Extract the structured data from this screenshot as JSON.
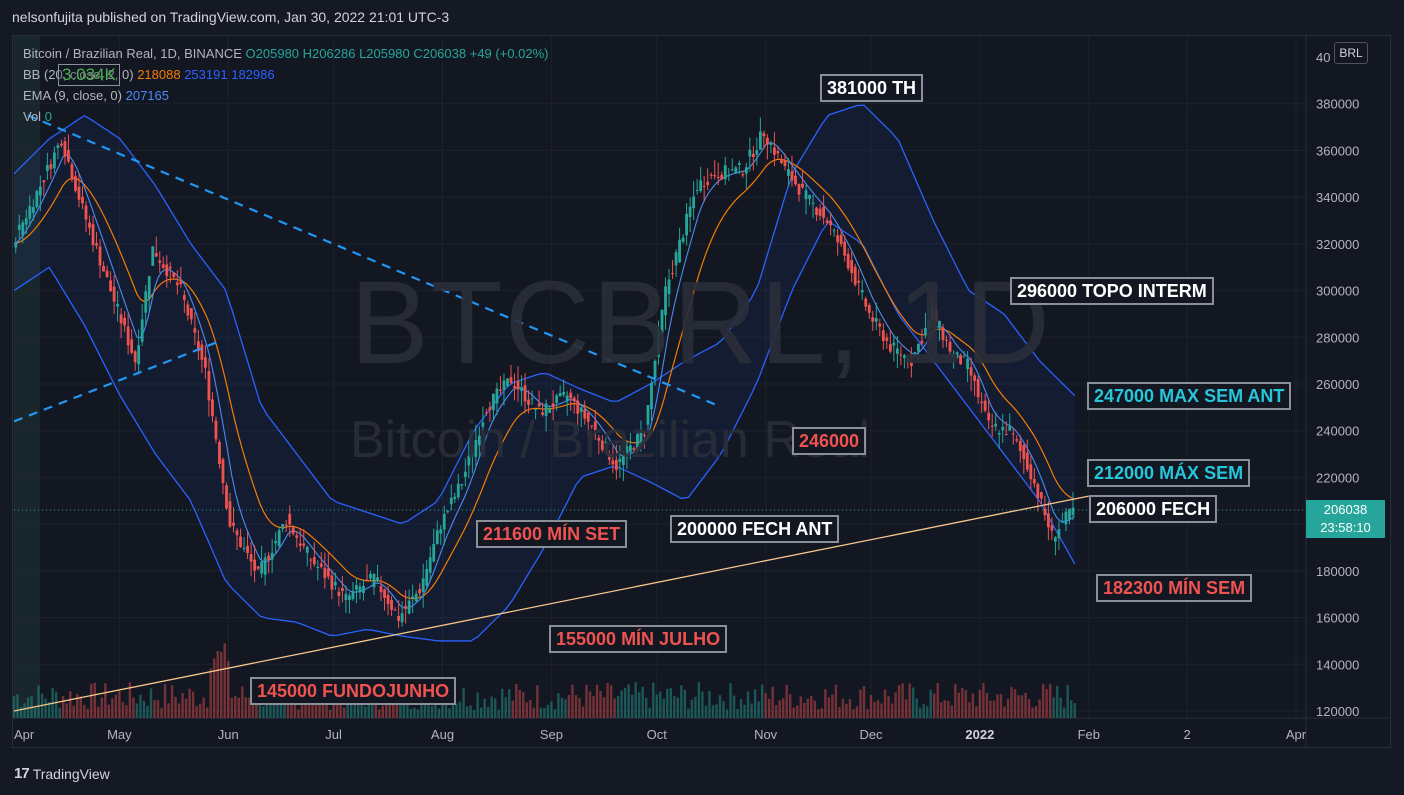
{
  "header": {
    "text": "nelsonfujita published on TradingView.com, Jan 30, 2022 21:01 UTC-3"
  },
  "legend": {
    "symbol": "Bitcoin / Brazilian Real, 1D, BINANCE",
    "open": "O205980",
    "high": "H206286",
    "low": "L205980",
    "close": "C206038",
    "change": "+49 (+0.02%)",
    "bb_label": "BB (20, close, 2, 0)",
    "bb_mid": "218088",
    "bb_up": "253191",
    "bb_low": "182986",
    "ema_label": "EMA (9, close, 0)",
    "ema_val": "207165",
    "vol_label": "Vol",
    "vol_val": "0",
    "overlay": "3.034K"
  },
  "watermark": {
    "symbol": "BTCBRL, 1D",
    "name": "Bitcoin / Brazilian Real"
  },
  "currency": "BRL",
  "price_box": {
    "price": "206038",
    "countdown": "23:58:10"
  },
  "footer": {
    "brand": "TradingView",
    "logo": "17"
  },
  "annotations": [
    {
      "text": "381000 TH",
      "color": "white"
    },
    {
      "text": "296000 TOPO INTERM",
      "color": "white"
    },
    {
      "text": "247000 MAX SEM ANT",
      "color": "cyan"
    },
    {
      "text": "212000 MÁX SEM",
      "color": "cyan"
    },
    {
      "text": "206000 FECH",
      "color": "white"
    },
    {
      "text": "182300 MÍN SEM",
      "color": "red"
    },
    {
      "text": "246000",
      "color": "red"
    },
    {
      "text": "200000 FECH ANT",
      "color": "white"
    },
    {
      "text": "211600 MÍN SET",
      "color": "red"
    },
    {
      "text": "155000 MÍN JULHO",
      "color": "red"
    },
    {
      "text": "145000 FUNDOJUNHO",
      "color": "red"
    }
  ],
  "chart_data": {
    "type": "line",
    "title": "",
    "xlabel": "",
    "ylabel": "",
    "ylim": [
      120000,
      400000
    ],
    "y_ticks": [
      120000,
      140000,
      160000,
      180000,
      200000,
      220000,
      240000,
      260000,
      280000,
      300000,
      320000,
      340000,
      360000,
      380000
    ],
    "y_tick_labels": [
      "120000",
      "140000",
      "160000",
      "180000",
      "200000",
      "220000",
      "240000",
      "260000",
      "280000",
      "300000",
      "320000",
      "340000",
      "360000",
      "380000"
    ],
    "y_top_partial": "40",
    "x_ticks": [
      "Apr",
      "May",
      "Jun",
      "Jul",
      "Aug",
      "Sep",
      "Oct",
      "Nov",
      "Dec",
      "2022",
      "Feb",
      "2",
      "Apr"
    ],
    "x_tick_days": [
      0,
      30,
      61,
      91,
      122,
      153,
      183,
      214,
      244,
      275,
      306,
      334,
      365
    ],
    "colors": {
      "up": "#26a69a",
      "down": "#ef5350",
      "bb": "#2962ff",
      "ema": "#f57c00",
      "trend": "#f6c58a",
      "dashed": "#2196f3"
    },
    "series": [
      {
        "name": "",
        "days": [
          0,
          8,
          14,
          20,
          28,
          35,
          40,
          48,
          55,
          62,
          70,
          78,
          85,
          95,
          103,
          110,
          116,
          122,
          128,
          135,
          142,
          150,
          158,
          165,
          172,
          180,
          186,
          195,
          200,
          208,
          214,
          220,
          226,
          232,
          238,
          244,
          250,
          256,
          262,
          268,
          272,
          278,
          284,
          290,
          296,
          302
        ],
        "values": [
          320000,
          345000,
          365000,
          335000,
          300000,
          270000,
          318000,
          300000,
          265000,
          200000,
          178000,
          202000,
          185000,
          168000,
          177000,
          160000,
          172000,
          200000,
          218000,
          250000,
          262000,
          248000,
          255000,
          242000,
          225000,
          240000,
          300000,
          345000,
          350000,
          352000,
          368000,
          352000,
          340000,
          330000,
          312000,
          290000,
          276000,
          270000,
          290000,
          272000,
          268000,
          242000,
          240000,
          222000,
          195000,
          206038
        ]
      }
    ],
    "trendline": {
      "start": [
        0,
        120000
      ],
      "end": [
        306,
        212000
      ]
    },
    "bb_top_values": [
      350000,
      365000,
      375000,
      365000,
      345000,
      320000,
      300000,
      250000,
      230000,
      210000,
      205000,
      200000,
      210000,
      240000,
      260000,
      265000,
      258000,
      252000,
      260000,
      270000,
      278000,
      300000,
      350000,
      375000,
      380000,
      365000,
      330000,
      300000,
      290000,
      270000,
      255000
    ],
    "bb_low_values": [
      300000,
      310000,
      285000,
      255000,
      230000,
      210000,
      175000,
      160000,
      158000,
      152000,
      155000,
      152000,
      150000,
      150000,
      165000,
      190000,
      220000,
      225000,
      218000,
      210000,
      230000,
      260000,
      300000,
      330000,
      320000,
      290000,
      270000,
      250000,
      230000,
      210000,
      182986
    ],
    "dashed_lines": [
      {
        "start": [
          4,
          375000
        ],
        "end": [
          200,
          251000
        ]
      },
      {
        "start": [
          0,
          244000
        ],
        "end": [
          58,
          278000
        ]
      }
    ]
  }
}
